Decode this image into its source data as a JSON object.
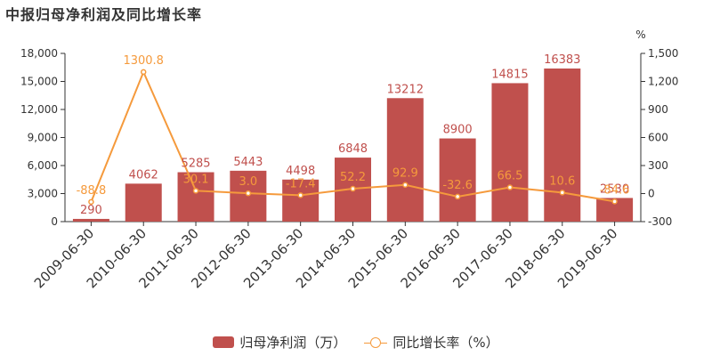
{
  "chart_data": {
    "type": "bar",
    "title": "中报归母净利润及同比增长率",
    "categories": [
      "2009-06-30",
      "2010-06-30",
      "2011-06-30",
      "2012-06-30",
      "2013-06-30",
      "2014-06-30",
      "2015-06-30",
      "2016-06-30",
      "2017-06-30",
      "2018-06-30",
      "2019-06-30"
    ],
    "series": [
      {
        "name": "归母净利润（万）",
        "type": "bar",
        "axis": "left",
        "color": "#c0504d",
        "values": [
          290,
          4062,
          5285,
          5443,
          4498,
          6848,
          13212,
          8900,
          14815,
          16383,
          2530
        ],
        "labels": [
          "290",
          "4062",
          "5285",
          "5443",
          "4498",
          "6848",
          "13212",
          "8900",
          "14815",
          "16383",
          "2530"
        ]
      },
      {
        "name": "同比增长率（%）",
        "type": "line",
        "axis": "right",
        "color": "#f59a3c",
        "values": [
          -88.8,
          1300.8,
          30.1,
          3.0,
          -17.4,
          52.2,
          92.9,
          -32.6,
          66.5,
          10.6,
          -84.6
        ],
        "labels": [
          "-88.8",
          "1300.8",
          "30.1",
          "3.0",
          "-17.4",
          "52.2",
          "92.9",
          "-32.6",
          "66.5",
          "10.6",
          "-84.6"
        ]
      }
    ],
    "y_left": {
      "min": 0,
      "max": 18000,
      "ticks": [
        0,
        3000,
        6000,
        9000,
        12000,
        15000,
        18000
      ],
      "tick_labels": [
        "0",
        "3,000",
        "6,000",
        "9,000",
        "12,000",
        "15,000",
        "18,000"
      ]
    },
    "y_right": {
      "min": -300,
      "max": 1500,
      "unit": "%",
      "ticks": [
        -300,
        0,
        300,
        600,
        900,
        1200,
        1500
      ],
      "tick_labels": [
        "-300",
        "0",
        "300",
        "600",
        "900",
        "1,200",
        "1,500"
      ]
    },
    "grid": false,
    "legend_position": "bottom-center"
  }
}
